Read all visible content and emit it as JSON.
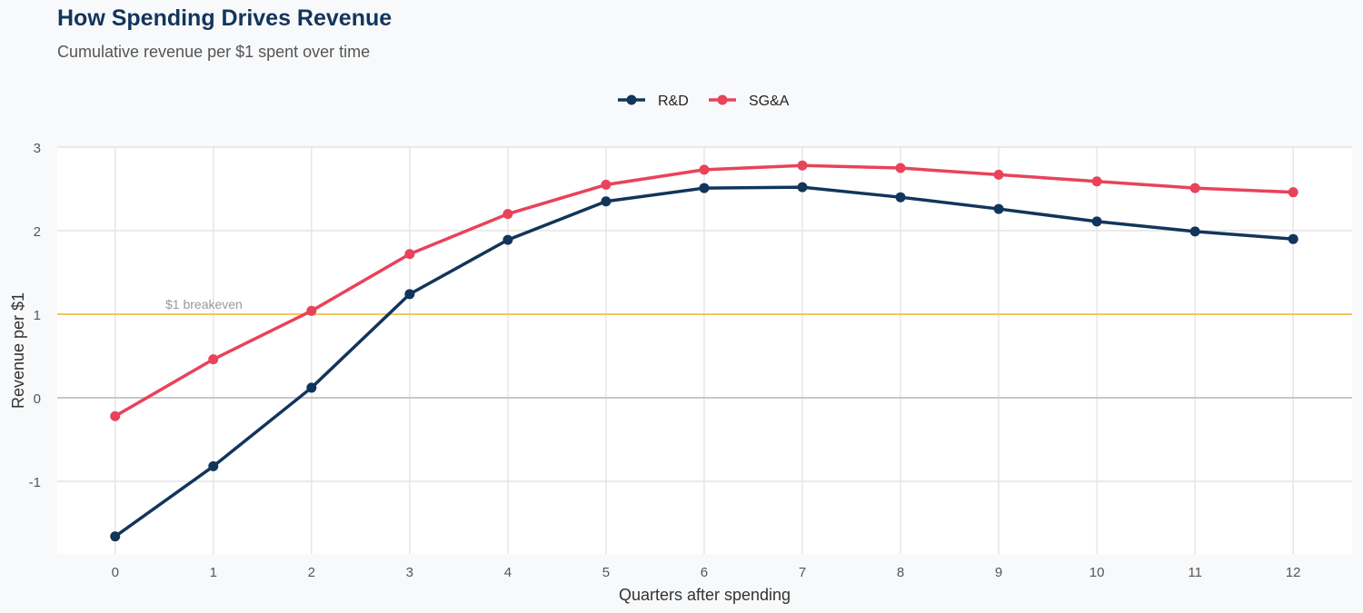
{
  "title": "How Spending Drives Revenue",
  "subtitle": "Cumulative revenue per $1 spent over time",
  "chart_data": {
    "type": "line",
    "xlabel": "Quarters after spending",
    "ylabel": "Revenue per $1",
    "x": [
      0,
      1,
      2,
      3,
      4,
      5,
      6,
      7,
      8,
      9,
      10,
      11,
      12
    ],
    "xticks": [
      "0",
      "1",
      "2",
      "3",
      "4",
      "5",
      "6",
      "7",
      "8",
      "9",
      "10",
      "11",
      "12"
    ],
    "yticks": [
      "-1",
      "0",
      "1",
      "2",
      "3"
    ],
    "ylim": [
      -1.87,
      3
    ],
    "xlim": [
      -0.59,
      12.6
    ],
    "grid": true,
    "legend_position": "top",
    "series": [
      {
        "name": "R&D",
        "color": "#12355b",
        "values": [
          -1.66,
          -0.82,
          0.12,
          1.24,
          1.89,
          2.35,
          2.51,
          2.52,
          2.4,
          2.26,
          2.11,
          1.99,
          1.9
        ]
      },
      {
        "name": "SG&A",
        "color": "#e8435a",
        "values": [
          -0.22,
          0.46,
          1.04,
          1.72,
          2.2,
          2.55,
          2.73,
          2.78,
          2.75,
          2.67,
          2.59,
          2.51,
          2.46
        ]
      }
    ],
    "reference_line": {
      "y": 1,
      "label": "$1 breakeven",
      "color": "#f5c65a"
    }
  }
}
